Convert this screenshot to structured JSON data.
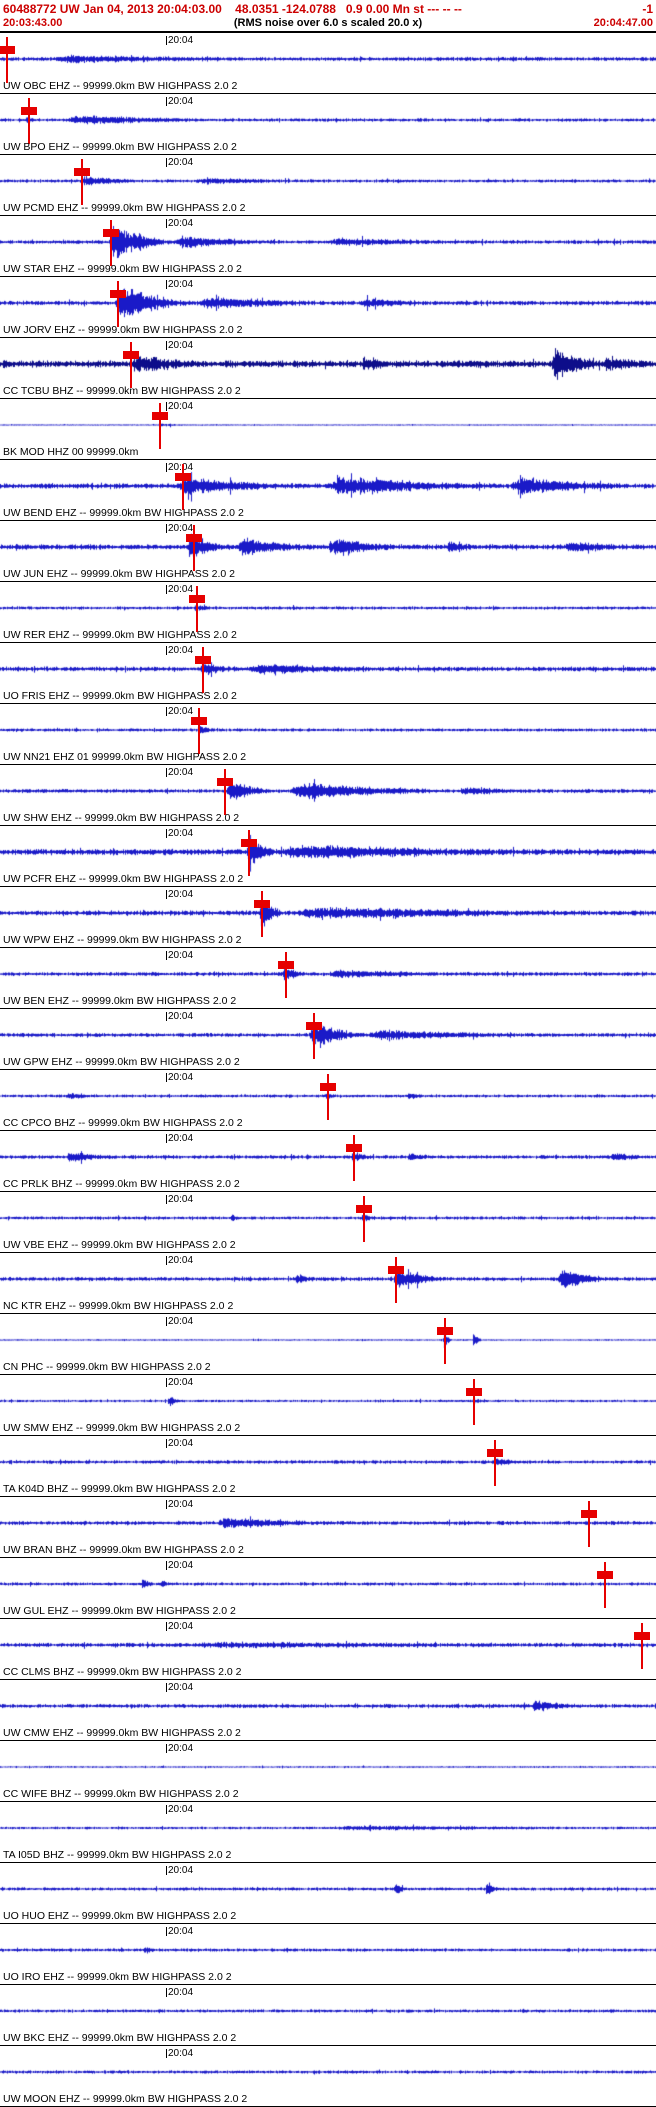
{
  "header": {
    "line1_left": "60488772 UW Jan 04, 2013 20:04:03.00    48.0351 -124.0788   0.9 0.00 Mn st --- -- --",
    "line1_right": "-1",
    "start_time": "20:03:43.00",
    "center_note": "(RMS noise over 6.0 s scaled 20.0 x)",
    "end_time": "20:04:47.00"
  },
  "timeline": {
    "tick_label": "20:04",
    "tick_x_frac": 0.253
  },
  "colors": {
    "waveform": "#1a1ac8",
    "waveform_dark": "#0d0d8a",
    "pick": "#e60000",
    "header_text": "#cc0000",
    "separator": "#000000"
  },
  "traces": [
    {
      "label": "UW OBC EHZ -- 99999.0km BW  HIGHPASS  2.0  2",
      "pick": 0.01,
      "noise": 2.2,
      "bursts": [
        {
          "p": 0.08,
          "w": 0.3,
          "a": 3
        }
      ]
    },
    {
      "label": "UW BPO EHZ -- 99999.0km BW  HIGHPASS  2.0  2",
      "pick": 0.044,
      "noise": 1.8,
      "bursts": [
        {
          "p": 0.1,
          "w": 0.25,
          "a": 4
        },
        {
          "p": 0.04,
          "w": 0.012,
          "a": 5
        }
      ]
    },
    {
      "label": "UW PCMD EHZ -- 99999.0km BW  HIGHPASS  2.0  2",
      "pick": 0.125,
      "noise": 1.8,
      "bursts": [
        {
          "p": 0.12,
          "w": 0.1,
          "a": 4
        },
        {
          "p": 0.3,
          "w": 0.15,
          "a": 2.5
        }
      ]
    },
    {
      "label": "UW STAR EHZ -- 99999.0km BW  HIGHPASS  2.0  2",
      "pick": 0.169,
      "noise": 2.2,
      "bursts": [
        {
          "p": 0.165,
          "w": 0.1,
          "a": 20
        },
        {
          "p": 0.265,
          "w": 0.15,
          "a": 6
        },
        {
          "p": 0.5,
          "w": 0.2,
          "a": 3
        }
      ]
    },
    {
      "label": "UW JORV EHZ -- 99999.0km BW  HIGHPASS  2.0  2",
      "pick": 0.18,
      "noise": 2.5,
      "bursts": [
        {
          "p": 0.175,
          "w": 0.12,
          "a": 18
        },
        {
          "p": 0.3,
          "w": 0.2,
          "a": 5
        },
        {
          "p": 0.55,
          "w": 0.1,
          "a": 4
        }
      ]
    },
    {
      "label": "CC TCBU BHZ -- 99999.0km BW  HIGHPASS  2.0  2",
      "pick": 0.2,
      "noise": 4.0,
      "dark": true,
      "bursts": [
        {
          "p": 0.2,
          "w": 0.12,
          "a": 7
        },
        {
          "p": 0.55,
          "w": 0.05,
          "a": 6
        },
        {
          "p": 0.84,
          "w": 0.08,
          "a": 16
        },
        {
          "p": 0.92,
          "w": 0.06,
          "a": 6
        }
      ]
    },
    {
      "label": "BK MOD HHZ 00 99999.0km",
      "pick": 0.244,
      "noise": 0.7,
      "bursts": [
        {
          "p": 0.24,
          "w": 0.05,
          "a": 1.5
        }
      ]
    },
    {
      "label": "UW BEND EHZ -- 99999.0km BW  HIGHPASS  2.0  2",
      "pick": 0.279,
      "noise": 3.0,
      "bursts": [
        {
          "p": 0.27,
          "w": 0.18,
          "a": 9
        },
        {
          "p": 0.5,
          "w": 0.25,
          "a": 9
        },
        {
          "p": 0.78,
          "w": 0.18,
          "a": 8
        }
      ]
    },
    {
      "label": "UW JUN EHZ -- 99999.0km BW  HIGHPASS  2.0  2",
      "pick": 0.296,
      "noise": 3.0,
      "bursts": [
        {
          "p": 0.285,
          "w": 0.06,
          "a": 13
        },
        {
          "p": 0.36,
          "w": 0.12,
          "a": 8
        },
        {
          "p": 0.5,
          "w": 0.12,
          "a": 7
        },
        {
          "p": 0.68,
          "w": 0.05,
          "a": 4
        },
        {
          "p": 0.86,
          "w": 0.1,
          "a": 5
        }
      ]
    },
    {
      "label": "UW RER EHZ -- 99999.0km BW  HIGHPASS  2.0  2",
      "pick": 0.3,
      "noise": 1.8,
      "bursts": [
        {
          "p": 0.295,
          "w": 0.03,
          "a": 3
        }
      ]
    },
    {
      "label": "UO FRIS EHZ -- 99999.0km BW  HIGHPASS  2.0  2",
      "pick": 0.31,
      "noise": 2.6,
      "bursts": [
        {
          "p": 0.305,
          "w": 0.05,
          "a": 7
        },
        {
          "p": 0.38,
          "w": 0.2,
          "a": 4
        }
      ]
    },
    {
      "label": "UW NN21 EHZ 01 99999.0km BW  HIGHPASS  2.0  2",
      "pick": 0.303,
      "noise": 1.8,
      "bursts": [
        {
          "p": 0.3,
          "w": 0.03,
          "a": 4
        }
      ]
    },
    {
      "label": "UW SHW EHZ -- 99999.0km BW  HIGHPASS  2.0  2",
      "pick": 0.343,
      "noise": 2.2,
      "bursts": [
        {
          "p": 0.345,
          "w": 0.07,
          "a": 11
        },
        {
          "p": 0.44,
          "w": 0.25,
          "a": 8
        },
        {
          "p": 0.7,
          "w": 0.1,
          "a": 3
        }
      ]
    },
    {
      "label": "UW PCFR EHZ -- 99999.0km BW  HIGHPASS  2.0  2",
      "pick": 0.38,
      "noise": 3.5,
      "bursts": [
        {
          "p": 0.375,
          "w": 0.05,
          "a": 15
        },
        {
          "p": 0.43,
          "w": 0.35,
          "a": 6
        }
      ]
    },
    {
      "label": "UW WPW EHZ -- 99999.0km BW  HIGHPASS  2.0  2",
      "pick": 0.4,
      "noise": 2.8,
      "bursts": [
        {
          "p": 0.395,
          "w": 0.04,
          "a": 16
        },
        {
          "p": 0.45,
          "w": 0.45,
          "a": 5
        }
      ]
    },
    {
      "label": "UW BEN EHZ -- 99999.0km BW  HIGHPASS  2.0  2",
      "pick": 0.436,
      "noise": 2.2,
      "bursts": [
        {
          "p": 0.43,
          "w": 0.04,
          "a": 6
        },
        {
          "p": 0.5,
          "w": 0.2,
          "a": 3
        }
      ]
    },
    {
      "label": "UW GPW EHZ -- 99999.0km BW  HIGHPASS  2.0  2",
      "pick": 0.479,
      "noise": 2.2,
      "bursts": [
        {
          "p": 0.47,
          "w": 0.09,
          "a": 13
        },
        {
          "p": 0.56,
          "w": 0.25,
          "a": 4
        }
      ]
    },
    {
      "label": "CC CPCO BHZ -- 99999.0km BW  HIGHPASS  2.0  2",
      "pick": 0.5,
      "noise": 1.7,
      "bursts": [
        {
          "p": 0.1,
          "w": 0.05,
          "a": 3
        },
        {
          "p": 0.495,
          "w": 0.02,
          "a": 4
        },
        {
          "p": 0.62,
          "w": 0.03,
          "a": 3
        }
      ]
    },
    {
      "label": "CC PRLK BHZ -- 99999.0km BW  HIGHPASS  2.0  2",
      "pick": 0.54,
      "noise": 2.1,
      "bursts": [
        {
          "p": 0.1,
          "w": 0.08,
          "a": 4
        },
        {
          "p": 0.535,
          "w": 0.03,
          "a": 5
        },
        {
          "p": 0.62,
          "w": 0.04,
          "a": 4
        },
        {
          "p": 0.93,
          "w": 0.05,
          "a": 4
        }
      ]
    },
    {
      "label": "UW VBE EHZ -- 99999.0km BW  HIGHPASS  2.0  2",
      "pick": 0.555,
      "noise": 1.8,
      "bursts": [
        {
          "p": 0.55,
          "w": 0.02,
          "a": 5
        },
        {
          "p": 0.35,
          "w": 0.02,
          "a": 3
        }
      ]
    },
    {
      "label": "NC KTR EHZ -- 99999.0km BW  HIGHPASS  2.0  2",
      "pick": 0.604,
      "noise": 2.2,
      "bursts": [
        {
          "p": 0.45,
          "w": 0.03,
          "a": 5
        },
        {
          "p": 0.6,
          "w": 0.08,
          "a": 10
        },
        {
          "p": 0.85,
          "w": 0.08,
          "a": 11
        }
      ]
    },
    {
      "label": "CN PHC -- 99999.0km BW  HIGHPASS  2.0  2",
      "pick": 0.678,
      "noise": 0.9,
      "bursts": [
        {
          "p": 0.675,
          "w": 0.015,
          "a": 9
        },
        {
          "p": 0.72,
          "w": 0.015,
          "a": 6
        }
      ]
    },
    {
      "label": "UW SMW EHZ -- 99999.0km BW  HIGHPASS  2.0  2",
      "pick": 0.723,
      "noise": 1.4,
      "bursts": [
        {
          "p": 0.255,
          "w": 0.02,
          "a": 6
        },
        {
          "p": 0.72,
          "w": 0.02,
          "a": 3
        }
      ]
    },
    {
      "label": "TA K04D BHZ -- 99999.0km BW  HIGHPASS  2.0  2",
      "pick": 0.755,
      "noise": 2.0,
      "bursts": [
        {
          "p": 0.75,
          "w": 0.05,
          "a": 2.5
        }
      ]
    },
    {
      "label": "UW BRAN BHZ -- 99999.0km BW  HIGHPASS  2.0  2",
      "pick": 0.898,
      "noise": 2.2,
      "bursts": [
        {
          "p": 0.33,
          "w": 0.17,
          "a": 5
        }
      ]
    },
    {
      "label": "UW GUL EHZ -- 99999.0km BW  HIGHPASS  2.0  2",
      "pick": 0.922,
      "noise": 1.8,
      "bursts": [
        {
          "p": 0.215,
          "w": 0.02,
          "a": 5
        },
        {
          "p": 0.245,
          "w": 0.015,
          "a": 4
        }
      ]
    },
    {
      "label": "CC CLMS BHZ -- 99999.0km BW  HIGHPASS  2.0  2",
      "pick": 0.979,
      "noise": 2.4,
      "bursts": [
        {
          "p": 0.3,
          "w": 0.4,
          "a": 2
        }
      ]
    },
    {
      "label": "UW CMW EHZ -- 99999.0km BW  HIGHPASS  2.0  2",
      "pick": null,
      "noise": 2.2,
      "bursts": [
        {
          "p": 0.81,
          "w": 0.07,
          "a": 6
        }
      ]
    },
    {
      "label": "CC WIFE BHZ -- 99999.0km BW  HIGHPASS  2.0  2",
      "pick": null,
      "noise": 1.0,
      "bursts": []
    },
    {
      "label": "TA I05D BHZ -- 99999.0km BW  HIGHPASS  2.0  2",
      "pick": null,
      "noise": 1.4,
      "bursts": [
        {
          "p": 0.5,
          "w": 0.5,
          "a": 1.5
        }
      ]
    },
    {
      "label": "UO HUO EHZ -- 99999.0km BW  HIGHPASS  2.0  2",
      "pick": null,
      "noise": 1.8,
      "bursts": [
        {
          "p": 0.6,
          "w": 0.02,
          "a": 7
        },
        {
          "p": 0.74,
          "w": 0.02,
          "a": 8
        }
      ]
    },
    {
      "label": "UO IRO EHZ -- 99999.0km BW  HIGHPASS  2.0  2",
      "pick": null,
      "noise": 1.8,
      "bursts": [
        {
          "p": 0.22,
          "w": 0.02,
          "a": 4
        }
      ]
    },
    {
      "label": "UW BKC EHZ -- 99999.0km BW  HIGHPASS  2.0  2",
      "pick": null,
      "noise": 1.8,
      "bursts": []
    },
    {
      "label": "UW MOON EHZ -- 99999.0km BW  HIGHPASS  2.0  2",
      "pick": null,
      "noise": 1.8,
      "bursts": []
    }
  ]
}
